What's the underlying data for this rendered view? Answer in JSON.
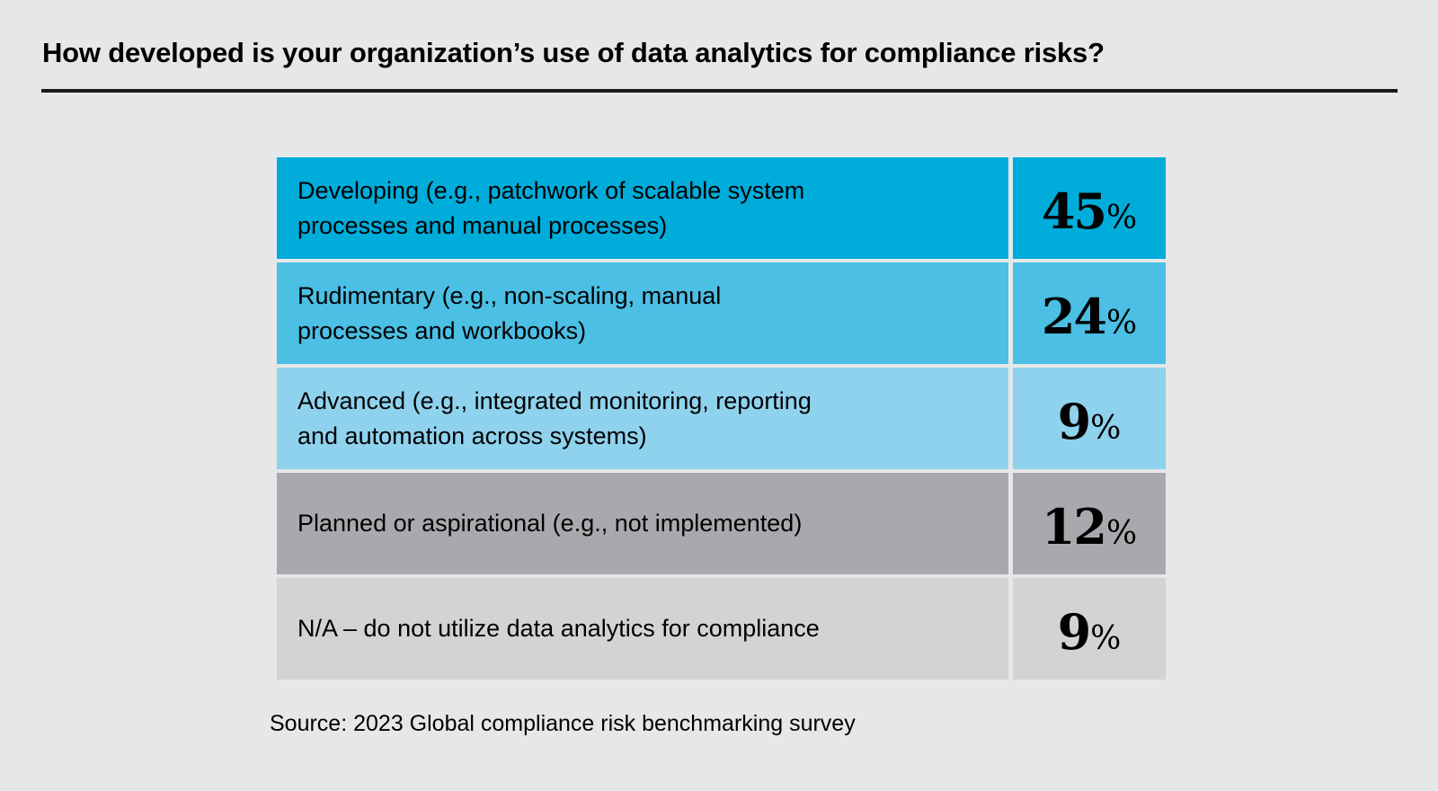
{
  "header": {
    "title": "How developed is your organization’s use of data analytics for compliance risks?"
  },
  "chart_data": {
    "type": "table",
    "title": "How developed is your organization’s use of data analytics for compliance risks?",
    "categories": [
      "Developing (e.g., patchwork of scalable system\nprocesses and manual processes)",
      "Rudimentary (e.g., non-scaling, manual\nprocesses and workbooks)",
      "Advanced (e.g., integrated monitoring, reporting\nand automation across systems)",
      "Planned or aspirational (e.g., not implemented)",
      "N/A – do not utilize data analytics for compliance"
    ],
    "values": [
      45,
      24,
      9,
      12,
      9
    ],
    "unit": "%",
    "row_colors": [
      "#00acda",
      "#4bbfe4",
      "#8fd2ee",
      "#a7a9ac",
      "#d2d3d5"
    ],
    "legend_position": "none",
    "grid": false,
    "source": "Source: 2023 Global compliance risk benchmarking survey"
  },
  "footer": {
    "source": "Source: 2023 Global compliance risk benchmarking survey"
  },
  "colors": {
    "page_background": "#e6e7e8",
    "title_text": "#000000",
    "rule": "#1a1a1a",
    "label_text": "#000000",
    "value_text": "#000000"
  }
}
